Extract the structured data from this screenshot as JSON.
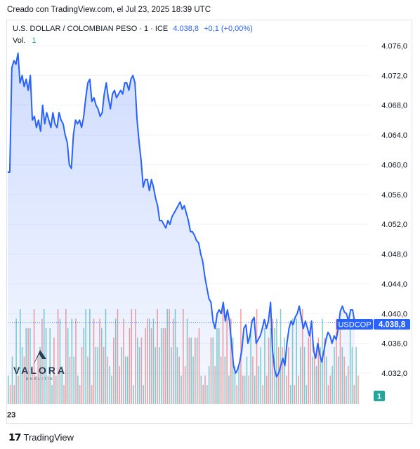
{
  "header": {
    "credit": "Creado con TradingView.com, el Jul 23, 2025 18:39 UTC"
  },
  "legend": {
    "symbol": "U.S. DOLLAR / COLOMBIAN PESO · 1 · ICE",
    "price": "4.038,8",
    "change": "+0,1 (+0,00%)",
    "volume_label": "Vol.",
    "volume_value": "1"
  },
  "price_badge": {
    "ticker": "USDCOP",
    "value": "4.038,8"
  },
  "volume_badge": "1",
  "watermark": {
    "brand": "VALORA",
    "sub": "ANALITIK"
  },
  "footer": {
    "brand": "TradingView"
  },
  "colors": {
    "line": "#2962ff",
    "up": "#26a69a",
    "down": "#ef5350"
  },
  "chart_data": {
    "type": "area",
    "x_tick_labels": [
      "23"
    ],
    "y_ticks": [
      "4.076,0",
      "4.072,0",
      "4.068,0",
      "4.064,0",
      "4.060,0",
      "4.056,0",
      "4.052,0",
      "4.048,0",
      "4.044,0",
      "4.040,0",
      "4.036,0",
      "4.032,0"
    ],
    "ylim": [
      4028.2,
      4077.3
    ],
    "last_value": 4038.8,
    "series": [
      {
        "values": [
          4059,
          4059,
          4073,
          4074,
          4073.5,
          4075,
          4071,
          4072,
          4070.5,
          4071.5,
          4070,
          4072,
          4066,
          4066.5,
          4065,
          4066,
          4064.5,
          4068,
          4065.5,
          4067,
          4066,
          4065,
          4067,
          4065.5,
          4065,
          4067,
          4066,
          4065.5,
          4064,
          4063,
          4060,
          4059.5,
          4064,
          4066,
          4065.5,
          4066,
          4065,
          4066.5,
          4069,
          4071,
          4071.5,
          4068.5,
          4069,
          4068,
          4067.5,
          4066.5,
          4067,
          4069.5,
          4071,
          4069,
          4067.5,
          4069.5,
          4070,
          4069,
          4069.5,
          4070,
          4069.5,
          4071,
          4071,
          4070,
          4071.5,
          4072,
          4071,
          4066,
          4063,
          4060.5,
          4057,
          4058,
          4058,
          4056.5,
          4058,
          4057,
          4055.5,
          4054.5,
          4052.5,
          4052.5,
          4052,
          4051.5,
          4052.5,
          4052,
          4053,
          4053.5,
          4054,
          4054.5,
          4055,
          4054,
          4054.5,
          4053.5,
          4052.5,
          4051,
          4051,
          4050.5,
          4049.8,
          4049.5,
          4048,
          4047,
          4045,
          4043.5,
          4042,
          4041.5,
          4039,
          4038,
          4040,
          4040.5,
          4040,
          4041.5,
          4039,
          4040.5,
          4039,
          4036,
          4033,
          4032,
          4032.5,
          4033.5,
          4035,
          4038,
          4038.5,
          4036,
          4037,
          4039,
          4039.5,
          4036,
          4036.5,
          4037,
          4038,
          4039.2,
          4038,
          4039,
          4041.5,
          4035,
          4032.5,
          4031.5,
          4032,
          4033,
          4034,
          4033,
          4036,
          4038,
          4039,
          4038.5,
          4039.5,
          4040,
          4041,
          4039.5,
          4038,
          4039,
          4038,
          4037,
          4039,
          4035,
          4034,
          4036,
          4034.5,
          4033.5,
          4035,
          4036.5,
          4037.5,
          4037,
          4036,
          4037,
          4036.5,
          4038,
          4040.3,
          4041,
          4040.2,
          4040,
          4039,
          4040.5,
          4040.5,
          4038.8
        ]
      }
    ],
    "volume": [
      3,
      2,
      5,
      2,
      9,
      3,
      10,
      6,
      5,
      8,
      8,
      8,
      4,
      10,
      3,
      5,
      6,
      9,
      10,
      8,
      3,
      8,
      2,
      7,
      3,
      10,
      9,
      4,
      2,
      10,
      8,
      5,
      9,
      5,
      9,
      3,
      2,
      6,
      8,
      10,
      5,
      10,
      2,
      9,
      6,
      6,
      9,
      8,
      6,
      10,
      5,
      4,
      3,
      7,
      9,
      10,
      4,
      6,
      9,
      5,
      5,
      8,
      10,
      2,
      10,
      7,
      6,
      7,
      2,
      8,
      9,
      9,
      8,
      9,
      6,
      10,
      6,
      8,
      8,
      8,
      10,
      10,
      6,
      9,
      10,
      6,
      5,
      3,
      10,
      4,
      9,
      7,
      7,
      5,
      7,
      7,
      8,
      3,
      2,
      3,
      2,
      4,
      7,
      7,
      4,
      8,
      8,
      5,
      10,
      5,
      9,
      3,
      9,
      7,
      4,
      2,
      4,
      10,
      3,
      3,
      5,
      3,
      8,
      5,
      3,
      10,
      4,
      6,
      2,
      8,
      3,
      7,
      8,
      9,
      8,
      9,
      6,
      10,
      6,
      7,
      3,
      6,
      2,
      9,
      2,
      9,
      3,
      6,
      10,
      6,
      2,
      7,
      8,
      5,
      6,
      4,
      7,
      6,
      9,
      7,
      5,
      2,
      3,
      4,
      6,
      9,
      5,
      9,
      6,
      5,
      3,
      4,
      8,
      6,
      2,
      6,
      3
    ],
    "volume_up": [
      1,
      0,
      1,
      0,
      1,
      0,
      1,
      1,
      0,
      1,
      0,
      1,
      0,
      0,
      1,
      0,
      1,
      0,
      1,
      1,
      0,
      1,
      1,
      0,
      1,
      0,
      1,
      1,
      0,
      0,
      1,
      0,
      1,
      1,
      0,
      1,
      0,
      0,
      1,
      1,
      0,
      1,
      0,
      0,
      1,
      1,
      0,
      1,
      0,
      1,
      0,
      1,
      1,
      0,
      1,
      0,
      0,
      1,
      0,
      1,
      1,
      0,
      0,
      1,
      0,
      1,
      1,
      0,
      1,
      0,
      0,
      1,
      0,
      1,
      1,
      0,
      1,
      1,
      0,
      0,
      1,
      0,
      1,
      0,
      1,
      1,
      0,
      1,
      0,
      0,
      1,
      0,
      1,
      1,
      0,
      1,
      0,
      1,
      0,
      0,
      1,
      1,
      0,
      1,
      0,
      1,
      1,
      0,
      0,
      1,
      0,
      1,
      0,
      1,
      1,
      0,
      1,
      0,
      0,
      1,
      1,
      0,
      1,
      0,
      1,
      0,
      1,
      1,
      0,
      1,
      0,
      0,
      1,
      0,
      1,
      1,
      0,
      1,
      0,
      1,
      0,
      0,
      1,
      1,
      0,
      1,
      0,
      1,
      0,
      1,
      1,
      0,
      0,
      1,
      0,
      1,
      0,
      1,
      1,
      0,
      1,
      0,
      0,
      1,
      1,
      0,
      1,
      0,
      1,
      0,
      1,
      0,
      1,
      1,
      0,
      1,
      0
    ]
  }
}
